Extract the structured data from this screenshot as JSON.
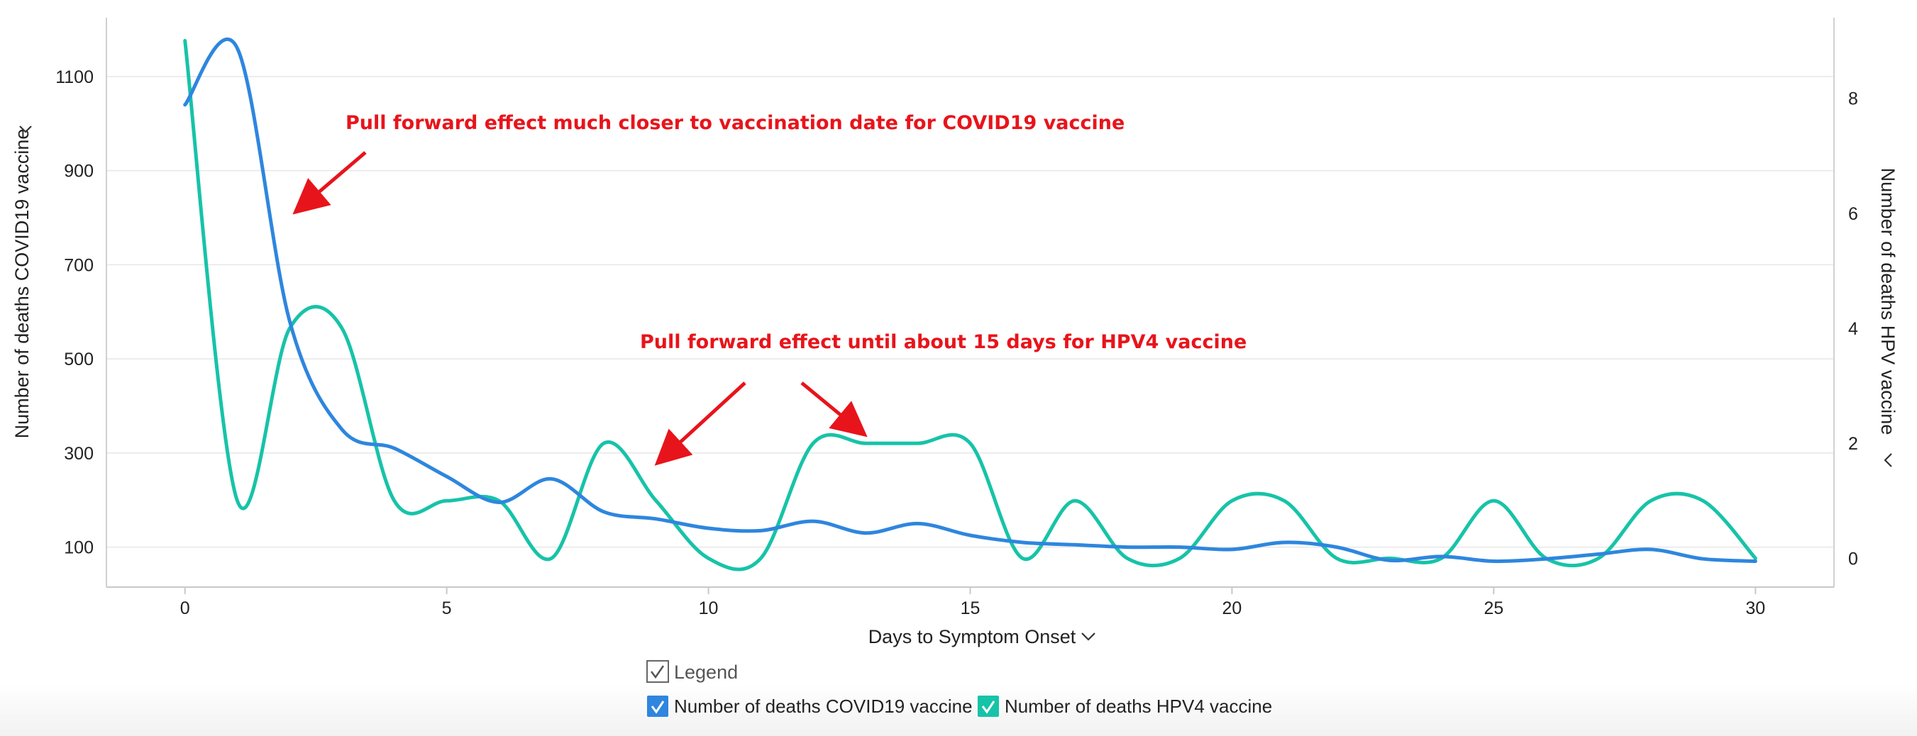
{
  "chart_data": {
    "type": "line",
    "title": "",
    "xlabel": "Days to Symptom Onset",
    "ylabel_left": "Number of deaths COVID19 vaccine",
    "ylabel_right": "Number of deaths HPV vaccine",
    "x_ticks": [
      0,
      5,
      10,
      15,
      20,
      25,
      30
    ],
    "y_left_ticks": [
      100,
      300,
      500,
      700,
      900,
      1100
    ],
    "y_right_ticks": [
      0,
      2,
      4,
      6,
      8
    ],
    "xlim": [
      -1.5,
      31.5
    ],
    "ylim_left": [
      15,
      1225
    ],
    "ylim_right": [
      -0.5,
      9.4
    ],
    "grid": true,
    "legend": {
      "title": "Legend",
      "placement": "bottom"
    },
    "x": [
      0,
      1,
      2,
      3,
      4,
      5,
      6,
      7,
      8,
      9,
      10,
      11,
      12,
      13,
      14,
      15,
      16,
      17,
      18,
      19,
      20,
      21,
      22,
      23,
      24,
      25,
      26,
      27,
      28,
      29,
      30
    ],
    "series": [
      {
        "name": "Number of deaths COVID19 vaccine",
        "axis": "left",
        "color": "#2e86de",
        "values": [
          1040,
          1160,
          580,
          350,
          310,
          250,
          195,
          245,
          175,
          160,
          140,
          135,
          155,
          130,
          150,
          125,
          110,
          105,
          100,
          100,
          95,
          110,
          100,
          72,
          80,
          70,
          75,
          85,
          95,
          75,
          70
        ]
      },
      {
        "name": "Number of deaths HPV4 vaccine",
        "axis": "right",
        "color": "#17c3a8",
        "values": [
          9,
          1,
          4,
          4,
          1,
          1,
          1,
          0,
          2,
          1,
          0,
          0,
          2,
          2,
          2,
          2,
          0,
          1,
          0,
          0,
          1,
          1,
          0,
          0,
          0,
          1,
          0,
          0,
          1,
          1,
          0
        ]
      }
    ],
    "annotations": [
      {
        "text": "Pull forward effect much closer to vaccination date for COVID19 vaccine"
      },
      {
        "text": "Pull forward effect until about 15 days for HPV4 vaccine"
      }
    ]
  }
}
